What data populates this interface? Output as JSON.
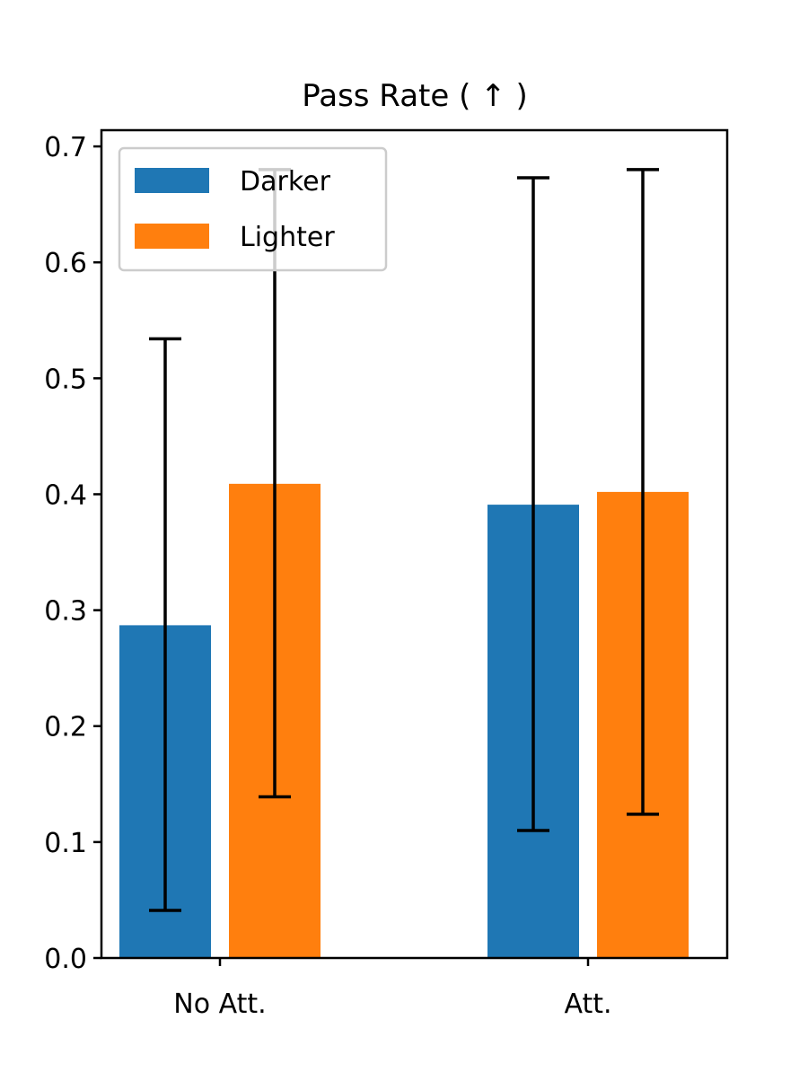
{
  "chart_data": {
    "type": "bar",
    "title": "Pass Rate ( ↑ )",
    "xlabel": "",
    "ylabel": "",
    "categories": [
      "No Att.",
      "Att."
    ],
    "series": [
      {
        "name": "Darker",
        "color": "#1f77b4",
        "values": [
          0.287,
          0.391
        ],
        "error_low": [
          0.041,
          0.11
        ],
        "error_high": [
          0.534,
          0.673
        ]
      },
      {
        "name": "Lighter",
        "color": "#ff7f0e",
        "values": [
          0.409,
          0.402
        ],
        "error_low": [
          0.139,
          0.124
        ],
        "error_high": [
          0.68,
          0.68
        ]
      }
    ],
    "ylim": [
      0,
      0.714
    ],
    "yticks": [
      0.0,
      0.1,
      0.2,
      0.3,
      0.4,
      0.5,
      0.6,
      0.7
    ],
    "ytick_labels": [
      "0.0",
      "0.1",
      "0.2",
      "0.3",
      "0.4",
      "0.5",
      "0.6",
      "0.7"
    ],
    "grid": false,
    "legend_position": "top-left"
  }
}
